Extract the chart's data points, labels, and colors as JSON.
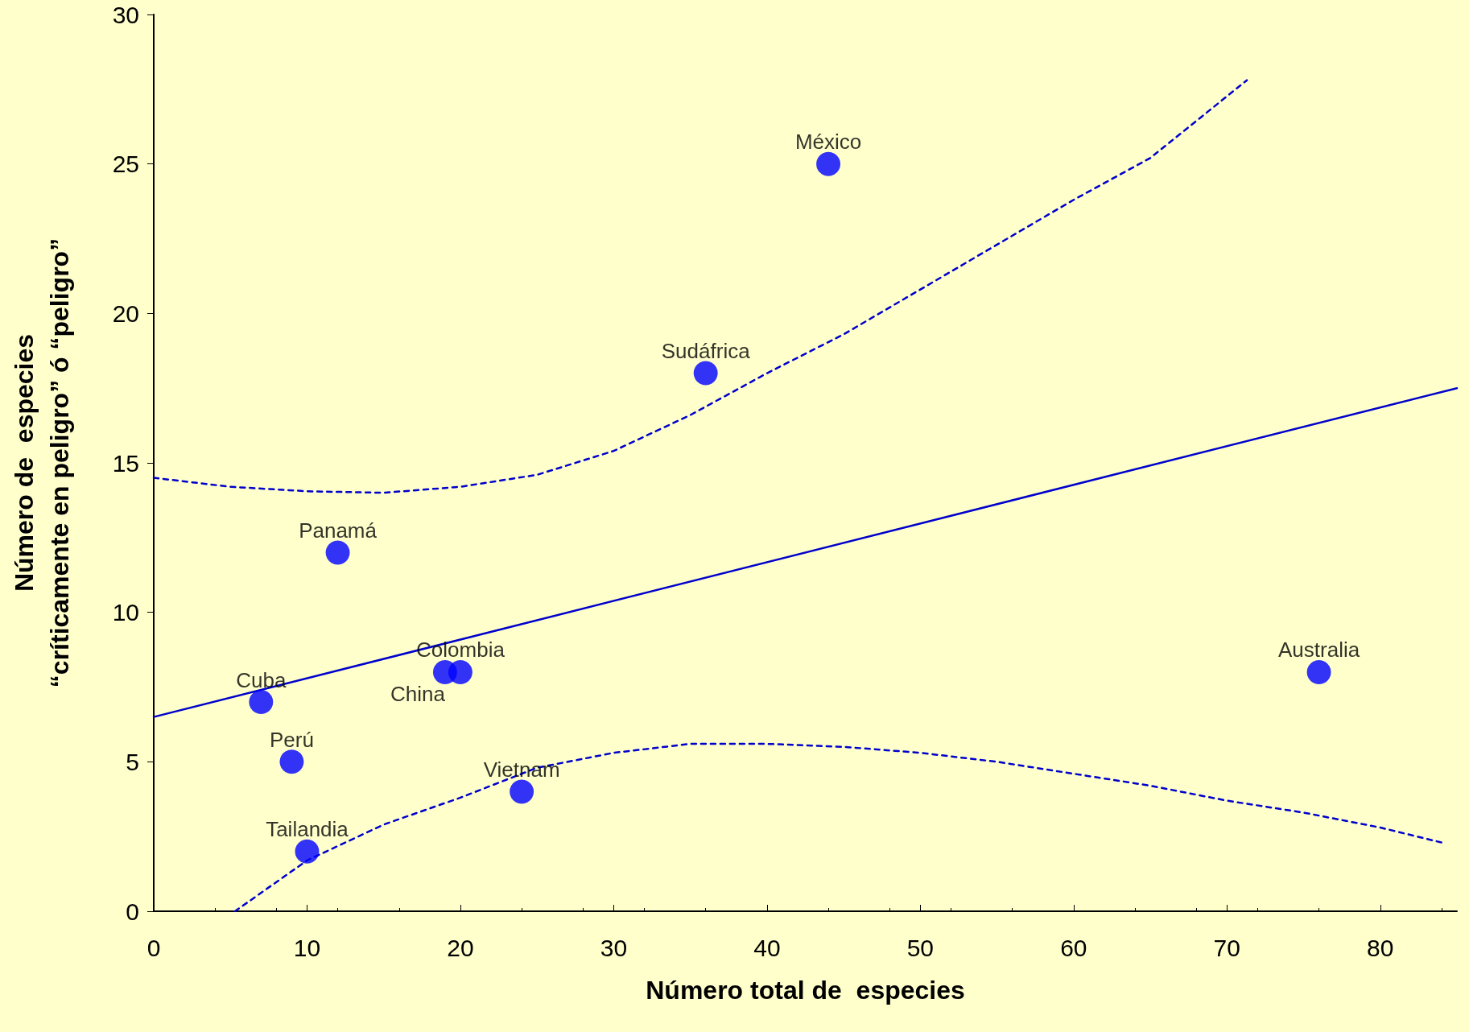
{
  "chart_data": {
    "type": "scatter",
    "xlabel": "Número total de  especies",
    "ylabel": "Número de  especies\n“críticamente en peligro” ó “peligro”",
    "xlim": [
      0,
      85
    ],
    "xticks": [
      0,
      10,
      20,
      30,
      40,
      50,
      60,
      70,
      80
    ],
    "ylim": [
      0,
      30
    ],
    "yticks": [
      0,
      5,
      10,
      15,
      20,
      25,
      30
    ],
    "grid": false,
    "series": [
      {
        "color": "#0000ff",
        "marker": "circle",
        "x": [
          7,
          9,
          10,
          12,
          19,
          20,
          24,
          36,
          44,
          76
        ],
        "values": [
          7,
          5,
          2,
          12,
          8,
          8,
          4,
          18,
          25,
          8
        ]
      },
      {
        "type": "line",
        "color": "#0000cc",
        "marker": "none",
        "line_style": "solid",
        "x": [
          0,
          85
        ],
        "values": [
          6.5,
          17.5
        ]
      },
      {
        "type": "line",
        "color": "#0000cc",
        "marker": "none",
        "line_style": "dashed",
        "x": [
          0,
          5,
          10,
          15,
          20,
          25,
          30,
          35,
          40,
          45,
          50,
          55,
          60,
          65,
          71.3
        ],
        "values": [
          14.5,
          14.2,
          14.05,
          14,
          14.2,
          14.6,
          15.4,
          16.6,
          18,
          19.3,
          20.8,
          22.3,
          23.8,
          25.2,
          27.8
        ]
      },
      {
        "type": "line",
        "color": "#0000cc",
        "marker": "none",
        "line_style": "dashed",
        "x": [
          5.3,
          10,
          15,
          20,
          25,
          30,
          35,
          40,
          45,
          50,
          55,
          60,
          65,
          70,
          75,
          80,
          84
        ],
        "values": [
          0,
          1.7,
          2.9,
          3.8,
          4.8,
          5.3,
          5.6,
          5.6,
          5.5,
          5.3,
          5,
          4.6,
          4.2,
          3.7,
          3.3,
          2.8,
          2.3
        ]
      }
    ],
    "annotations": [
      {
        "text": "Cuba",
        "x": 7,
        "y": 7
      },
      {
        "text": "Perú",
        "x": 9,
        "y": 5
      },
      {
        "text": "Tailandia",
        "x": 10,
        "y": 2
      },
      {
        "text": "Panamá",
        "x": 12,
        "y": 12
      },
      {
        "text": "Colombia",
        "x": 20,
        "y": 8
      },
      {
        "text": "China",
        "x": 19,
        "y": 8
      },
      {
        "text": "Vietnam",
        "x": 24,
        "y": 4
      },
      {
        "text": "Sudáfrica",
        "x": 36,
        "y": 18
      },
      {
        "text": "México",
        "x": 44,
        "y": 25
      },
      {
        "text": "Australia",
        "x": 76,
        "y": 8
      }
    ]
  }
}
